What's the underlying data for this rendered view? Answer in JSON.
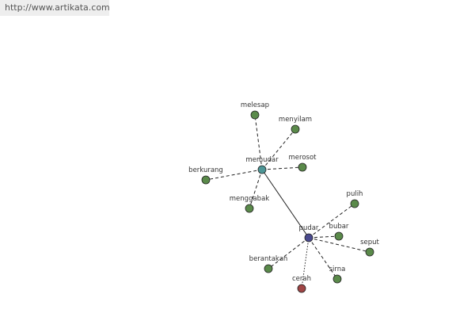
{
  "header": {
    "url": "http://www.artikata.com"
  },
  "nodes": [
    {
      "label": "memudar"
    },
    {
      "label": "pudar"
    },
    {
      "label": "melesap"
    },
    {
      "label": "menyilam"
    },
    {
      "label": "merosot"
    },
    {
      "label": "berkurang"
    },
    {
      "label": "menggabak"
    },
    {
      "label": "pulih"
    },
    {
      "label": "bubar"
    },
    {
      "label": "seput"
    },
    {
      "label": "berantakan"
    },
    {
      "label": "sirna"
    },
    {
      "label": "cerah"
    }
  ]
}
